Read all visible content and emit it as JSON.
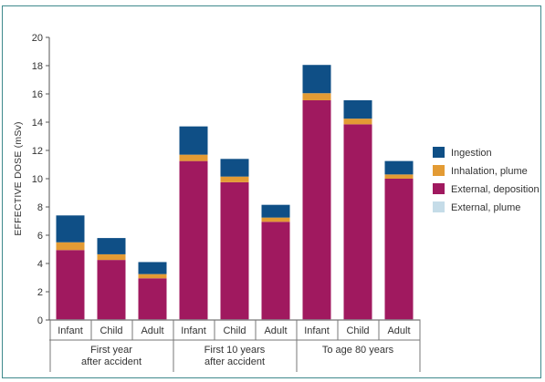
{
  "chart_data": {
    "type": "bar",
    "stacked": true,
    "ylabel": "EFFECTIVE DOSE (mSv)",
    "ylim": [
      0,
      20
    ],
    "yticks": [
      0,
      2,
      4,
      6,
      8,
      10,
      12,
      14,
      16,
      18,
      20
    ],
    "grid": false,
    "legend_position": "right",
    "groups": [
      {
        "label_lines": [
          "First year",
          "after accident"
        ],
        "categories": [
          "Infant",
          "Child",
          "Adult"
        ]
      },
      {
        "label_lines": [
          "First 10 years",
          "after accident"
        ],
        "categories": [
          "Infant",
          "Child",
          "Adult"
        ]
      },
      {
        "label_lines": [
          "To age 80 years"
        ],
        "categories": [
          "Infant",
          "Child",
          "Adult"
        ]
      }
    ],
    "series": [
      {
        "name": "External, plume",
        "color": "#c5dce8",
        "values": [
          0.05,
          0.05,
          0.05,
          0.05,
          0.05,
          0.05,
          0.05,
          0.05,
          0.05
        ]
      },
      {
        "name": "External, deposition",
        "color": "#a0195f",
        "values": [
          4.9,
          4.2,
          2.9,
          11.2,
          9.7,
          6.9,
          15.5,
          13.8,
          9.95
        ]
      },
      {
        "name": "Inhalation, plume",
        "color": "#e39b34",
        "values": [
          0.55,
          0.4,
          0.3,
          0.45,
          0.4,
          0.3,
          0.5,
          0.4,
          0.3
        ]
      },
      {
        "name": "Ingestion",
        "color": "#0f4f86",
        "values": [
          1.9,
          1.15,
          0.85,
          2.0,
          1.25,
          0.9,
          2.0,
          1.3,
          0.95
        ]
      }
    ],
    "legend_order": [
      "Ingestion",
      "Inhalation, plume",
      "External, deposition",
      "External, plume"
    ]
  }
}
